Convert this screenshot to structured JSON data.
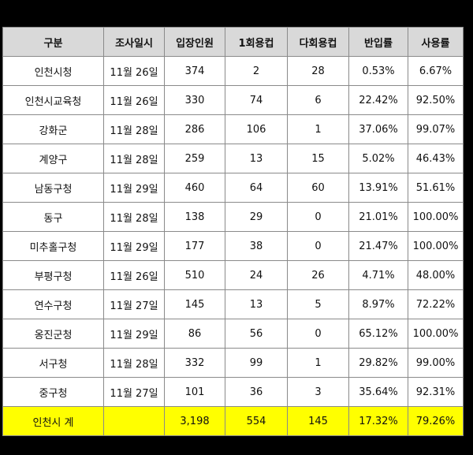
{
  "table": {
    "headers": [
      "구분",
      "조사일시",
      "입장인원",
      "1회용컵",
      "다회용컵",
      "반입률",
      "사용률"
    ],
    "rows": [
      [
        "인천시청",
        "11월 26일",
        "374",
        "2",
        "28",
        "0.53%",
        "6.67%"
      ],
      [
        "인천시교육청",
        "11월 26일",
        "330",
        "74",
        "6",
        "22.42%",
        "92.50%"
      ],
      [
        "강화군",
        "11월 28일",
        "286",
        "106",
        "1",
        "37.06%",
        "99.07%"
      ],
      [
        "계양구",
        "11월 28일",
        "259",
        "13",
        "15",
        "5.02%",
        "46.43%"
      ],
      [
        "남동구청",
        "11월 29일",
        "460",
        "64",
        "60",
        "13.91%",
        "51.61%"
      ],
      [
        "동구",
        "11월 28일",
        "138",
        "29",
        "0",
        "21.01%",
        "100.00%"
      ],
      [
        "미추홀구청",
        "11월 29일",
        "177",
        "38",
        "0",
        "21.47%",
        "100.00%"
      ],
      [
        "부평구청",
        "11월 26일",
        "510",
        "24",
        "26",
        "4.71%",
        "48.00%"
      ],
      [
        "연수구청",
        "11월 27일",
        "145",
        "13",
        "5",
        "8.97%",
        "72.22%"
      ],
      [
        "옹진군청",
        "11월 29일",
        "86",
        "56",
        "0",
        "65.12%",
        "100.00%"
      ],
      [
        "서구청",
        "11월 28일",
        "332",
        "99",
        "1",
        "29.82%",
        "99.00%"
      ],
      [
        "중구청",
        "11월 27일",
        "101",
        "36",
        "3",
        "35.64%",
        "92.31%"
      ]
    ],
    "total": [
      "인천시 계",
      "",
      "3,198",
      "554",
      "145",
      "17.32%",
      "79.26%"
    ]
  },
  "colors": {
    "header_bg": "#d9d9d9",
    "total_bg": "#ffff00",
    "background": "#000000"
  }
}
